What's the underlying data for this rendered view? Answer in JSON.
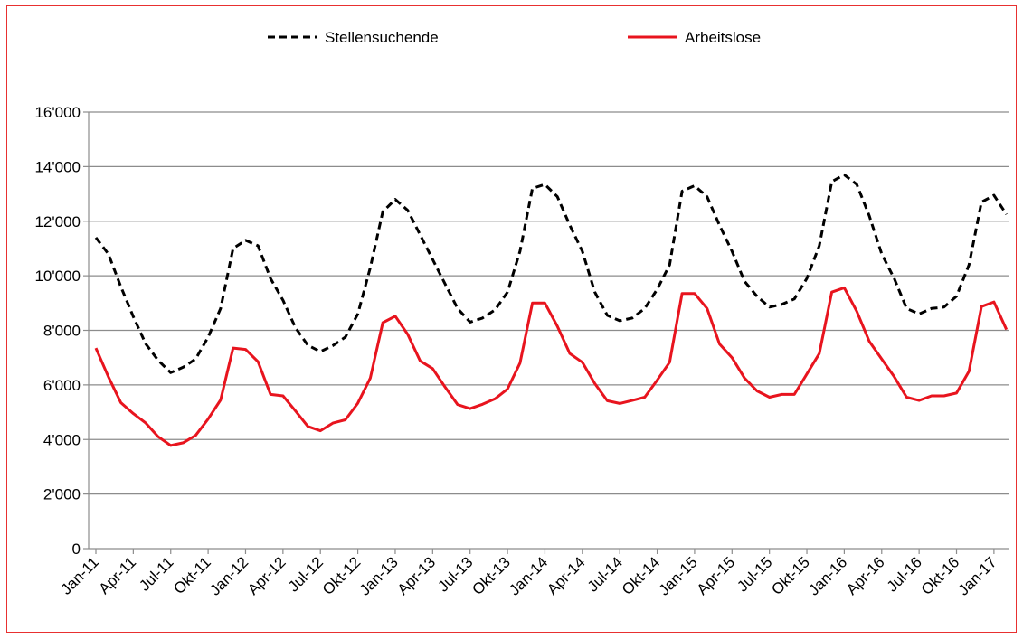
{
  "chart_data": {
    "type": "line",
    "title": "",
    "xlabel": "",
    "ylabel": "",
    "ylim": [
      0,
      16000
    ],
    "yticks": [
      0,
      2000,
      4000,
      6000,
      8000,
      10000,
      12000,
      14000,
      16000
    ],
    "ytick_labels": [
      "0",
      "2'000",
      "4'000",
      "6'000",
      "8'000",
      "10'000",
      "12'000",
      "14'000",
      "16'000"
    ],
    "x_tick_labels": [
      "Jan-11",
      "Apr-11",
      "Jul-11",
      "Okt-11",
      "Jan-12",
      "Apr-12",
      "Jul-12",
      "Okt-12",
      "Jan-13",
      "Apr-13",
      "Jul-13",
      "Okt-13",
      "Jan-14",
      "Apr-14",
      "Jul-14",
      "Okt-14",
      "Jan-15",
      "Apr-15",
      "Jul-15",
      "Okt-15",
      "Jan-16",
      "Apr-16",
      "Jul-16",
      "Okt-16",
      "Jan-17"
    ],
    "x_tick_every_n_months": 3,
    "grid": "horizontal",
    "legend_position": "top",
    "series": [
      {
        "name": "Stellensuchende",
        "color": "#000000",
        "style": "dashed",
        "values": [
          11400,
          10800,
          9600,
          8500,
          7500,
          6900,
          6450,
          6650,
          6950,
          7750,
          8800,
          11000,
          11300,
          11100,
          9900,
          9100,
          8100,
          7450,
          7220,
          7440,
          7750,
          8600,
          10300,
          12350,
          12800,
          12400,
          11500,
          10600,
          9700,
          8800,
          8300,
          8450,
          8750,
          9400,
          10900,
          13200,
          13350,
          12900,
          11850,
          10900,
          9400,
          8550,
          8350,
          8450,
          8800,
          9500,
          10400,
          13100,
          13300,
          12900,
          11850,
          10900,
          9800,
          9250,
          8850,
          8950,
          9150,
          9900,
          11100,
          13450,
          13700,
          13350,
          12200,
          10800,
          9900,
          8800,
          8600,
          8800,
          8850,
          9250,
          10400,
          12700,
          12950,
          12250
        ]
      },
      {
        "name": "Arbeitslose",
        "color": "#e8141e",
        "style": "solid",
        "values": [
          7350,
          6300,
          5350,
          4950,
          4600,
          4100,
          3780,
          3880,
          4150,
          4750,
          5450,
          7350,
          7300,
          6850,
          5650,
          5600,
          5050,
          4480,
          4320,
          4600,
          4720,
          5330,
          6250,
          8280,
          8520,
          7850,
          6880,
          6600,
          5920,
          5280,
          5130,
          5290,
          5490,
          5850,
          6800,
          9000,
          9000,
          8150,
          7150,
          6830,
          6050,
          5420,
          5320,
          5430,
          5550,
          6170,
          6830,
          9350,
          9350,
          8800,
          7500,
          7000,
          6250,
          5780,
          5550,
          5650,
          5650,
          6400,
          7150,
          9400,
          9560,
          8700,
          7600,
          6950,
          6300,
          5550,
          5430,
          5600,
          5600,
          5700,
          6500,
          8870,
          9040,
          8030
        ]
      }
    ]
  }
}
